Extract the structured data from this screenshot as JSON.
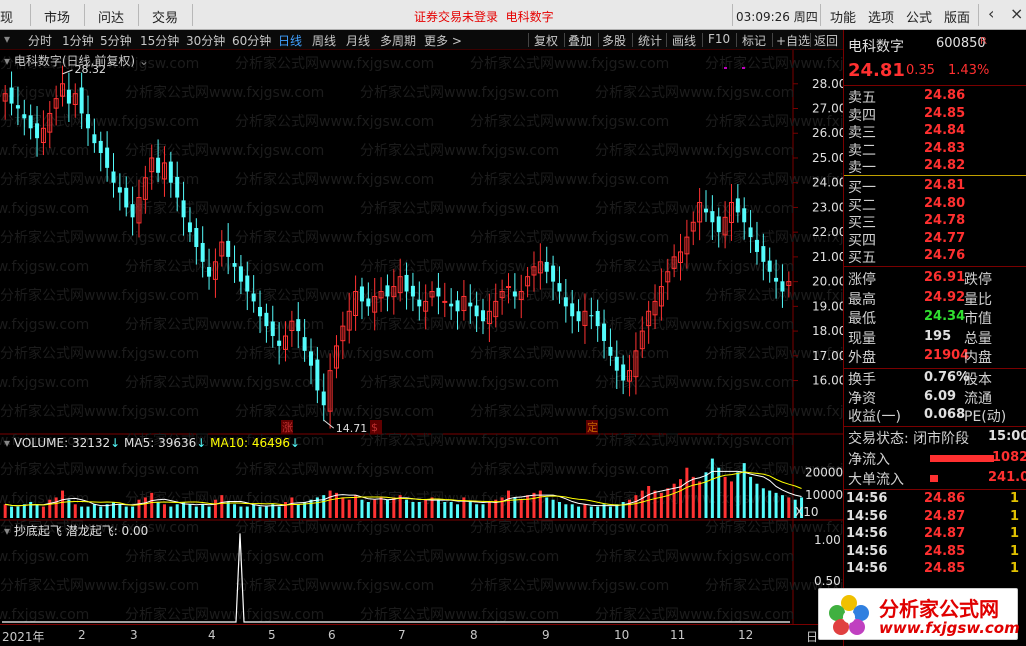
{
  "topbar": {
    "items": [
      "现",
      "市场",
      "问达",
      "交易"
    ],
    "notice1": "证券交易未登录",
    "notice2": "电科数字",
    "time": "03:09:26 周四",
    "right_items": [
      "功能",
      "选项",
      "公式",
      "版面"
    ],
    "back": "‹",
    "close": "×"
  },
  "periodbar": {
    "items": [
      "分时",
      "1分钟",
      "5分钟",
      "15分钟",
      "30分钟",
      "60分钟",
      "日线",
      "周线",
      "月线",
      "多周期",
      "更多 >"
    ],
    "active": "日线",
    "tools": [
      "复权",
      "叠加",
      "多股",
      "统计",
      "画线",
      "F10",
      "标记",
      "+自选",
      "返回"
    ]
  },
  "chart": {
    "title": "电科数字(日线,前复权)",
    "high_label": "28.32",
    "low_label": "14.71",
    "markers": [
      "涨",
      "$",
      "定"
    ],
    "volume_title": "VOLUME: 32132",
    "ma5": "MA5: 39636",
    "ma10": "MA10: 46496",
    "vol_unit": "X10",
    "ind_title": "抄底起飞",
    "ind_sub": "潜龙起飞: 0.00"
  },
  "chart_data": {
    "type": "candlestick",
    "price_axis": [
      "28.00",
      "27.00",
      "26.00",
      "25.00",
      "24.00",
      "23.00",
      "22.00",
      "21.00",
      "20.00",
      "19.00",
      "18.00",
      "17.00",
      "16.00"
    ],
    "volume_axis": [
      "20000",
      "10000"
    ],
    "indicator_axis": [
      "1.00",
      "0.50"
    ],
    "x_labels": [
      "2021年",
      "2",
      "3",
      "4",
      "5",
      "6",
      "7",
      "8",
      "9",
      "10",
      "11",
      "12",
      "日"
    ],
    "closes": [
      27.6,
      27.2,
      27.0,
      26.6,
      26.2,
      25.8,
      26.2,
      26.8,
      27.4,
      28.0,
      27.2,
      27.6,
      26.8,
      26.2,
      25.6,
      25.2,
      24.6,
      24.0,
      23.6,
      23.0,
      22.6,
      23.4,
      24.2,
      25.0,
      24.4,
      24.8,
      24.0,
      23.4,
      22.6,
      22.0,
      21.4,
      20.8,
      20.2,
      20.8,
      21.6,
      21.0,
      20.6,
      20.0,
      19.6,
      19.2,
      18.6,
      18.2,
      17.8,
      17.4,
      17.8,
      18.4,
      18.0,
      17.2,
      16.6,
      15.6,
      15.0,
      16.4,
      17.4,
      18.2,
      18.8,
      19.6,
      19.2,
      19.0,
      19.4,
      19.6,
      19.4,
      19.8,
      20.2,
      19.6,
      19.4,
      19.0,
      19.2,
      19.6,
      19.4,
      19.2,
      19.0,
      18.8,
      19.4,
      19.0,
      18.6,
      18.4,
      18.8,
      19.2,
      19.6,
      19.8,
      19.4,
      19.6,
      20.2,
      20.6,
      20.8,
      20.4,
      20.0,
      19.6,
      19.0,
      18.6,
      18.4,
      18.8,
      18.6,
      18.2,
      17.6,
      17.0,
      16.4,
      16.0,
      16.4,
      17.2,
      18.0,
      18.8,
      19.2,
      19.8,
      20.4,
      21.0,
      21.2,
      21.8,
      22.4,
      23.2,
      22.8,
      22.4,
      22.0,
      22.6,
      23.2,
      22.8,
      22.4,
      21.8,
      21.2,
      20.8,
      20.4,
      20.0,
      19.6,
      20.0
    ],
    "volumes": [
      6,
      5,
      5,
      6,
      7,
      6,
      5,
      8,
      9,
      12,
      8,
      6,
      5,
      5,
      6,
      5,
      6,
      7,
      6,
      5,
      5,
      8,
      9,
      11,
      7,
      6,
      5,
      6,
      7,
      6,
      5,
      6,
      5,
      8,
      10,
      7,
      6,
      5,
      5,
      6,
      5,
      5,
      6,
      5,
      7,
      9,
      6,
      7,
      8,
      9,
      10,
      12,
      11,
      9,
      8,
      10,
      8,
      7,
      8,
      9,
      8,
      9,
      10,
      8,
      7,
      7,
      8,
      9,
      8,
      7,
      7,
      6,
      9,
      7,
      6,
      6,
      7,
      8,
      9,
      12,
      9,
      8,
      10,
      11,
      12,
      9,
      8,
      7,
      6,
      6,
      5,
      6,
      5,
      5,
      6,
      5,
      6,
      7,
      8,
      10,
      12,
      14,
      12,
      11,
      13,
      15,
      17,
      22,
      18,
      16,
      20,
      26,
      22,
      18,
      16,
      20,
      24,
      18,
      15,
      13,
      12,
      11,
      10,
      9,
      8,
      9
    ]
  },
  "right": {
    "name": "电科数字",
    "code": "600850",
    "rflag": "R",
    "price": "24.81",
    "change": "0.35",
    "pct": "1.43%",
    "sells": [
      {
        "l": "卖五",
        "v": "24.86"
      },
      {
        "l": "卖四",
        "v": "24.85"
      },
      {
        "l": "卖三",
        "v": "24.84"
      },
      {
        "l": "卖二",
        "v": "24.83"
      },
      {
        "l": "卖一",
        "v": "24.82"
      }
    ],
    "buys": [
      {
        "l": "买一",
        "v": "24.81"
      },
      {
        "l": "买二",
        "v": "24.80"
      },
      {
        "l": "买三",
        "v": "24.78"
      },
      {
        "l": "买四",
        "v": "24.77"
      },
      {
        "l": "买五",
        "v": "24.76"
      }
    ],
    "stats": [
      {
        "l": "涨停",
        "v": "26.91",
        "l2": "跌停",
        "c": "#ff3030"
      },
      {
        "l": "最高",
        "v": "24.92",
        "l2": "量比",
        "c": "#ff3030"
      },
      {
        "l": "最低",
        "v": "24.34",
        "l2": "市值",
        "c": "#30e030"
      },
      {
        "l": "现量",
        "v": "195",
        "l2": "总量",
        "c": "#e0e0e0"
      },
      {
        "l": "外盘",
        "v": "21904",
        "l2": "内盘",
        "c": "#ff3030"
      }
    ],
    "stats2": [
      {
        "l": "换手",
        "v": "0.76%",
        "l2": "股本"
      },
      {
        "l": "净资",
        "v": "6.09",
        "l2": "流通"
      },
      {
        "l": "收益(一)",
        "v": "0.068",
        "l2": "PE(动)"
      }
    ],
    "trade_state": "交易状态: 闭市阶段",
    "trade_time": "15:00",
    "netin": "净流入",
    "netin_v": "1082",
    "bigin": "大单流入",
    "bigin_v": "241.0",
    "ticks": [
      {
        "t": "14:56",
        "p": "24.86",
        "v": "1"
      },
      {
        "t": "14:56",
        "p": "24.87",
        "v": "1"
      },
      {
        "t": "14:56",
        "p": "24.87",
        "v": "1"
      },
      {
        "t": "14:56",
        "p": "24.85",
        "v": "1"
      },
      {
        "t": "14:56",
        "p": "24.85",
        "v": "1"
      }
    ]
  },
  "logo": {
    "line1": "分析家公式网",
    "line2": "www.fxjgsw.com"
  },
  "colors": {
    "up": "#ff3232",
    "down": "#54fcfc",
    "ma5": "#ffffff",
    "ma10": "#ffff00",
    "frame": "#7a0000"
  }
}
